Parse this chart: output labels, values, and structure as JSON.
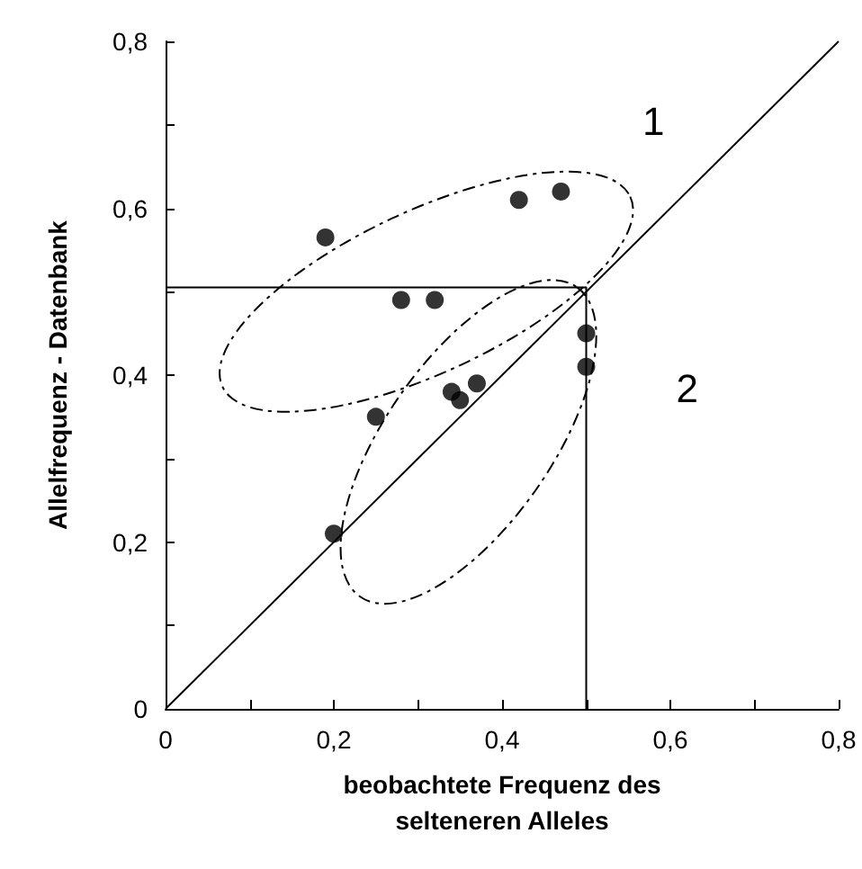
{
  "chart_data": {
    "type": "scatter",
    "xlabel": "beobachtete Frequenz des\nselteneren Alleles",
    "ylabel": "Allelfrequenz - Datenbank",
    "xlim": [
      0,
      0.8
    ],
    "ylim": [
      0,
      0.8
    ],
    "xticks": [
      {
        "value": 0,
        "label": "0"
      },
      {
        "value": 0.1,
        "label": null
      },
      {
        "value": 0.2,
        "label": "0,2"
      },
      {
        "value": 0.3,
        "label": null
      },
      {
        "value": 0.4,
        "label": "0,4"
      },
      {
        "value": 0.5,
        "label": null
      },
      {
        "value": 0.6,
        "label": "0,6"
      },
      {
        "value": 0.7,
        "label": null
      },
      {
        "value": 0.8,
        "label": "0,8"
      }
    ],
    "yticks": [
      {
        "value": 0,
        "label": "0"
      },
      {
        "value": 0.1,
        "label": null
      },
      {
        "value": 0.2,
        "label": "0,2"
      },
      {
        "value": 0.3,
        "label": null
      },
      {
        "value": 0.4,
        "label": "0,4"
      },
      {
        "value": 0.5,
        "label": null
      },
      {
        "value": 0.6,
        "label": "0,6"
      },
      {
        "value": 0.7,
        "label": null
      },
      {
        "value": 0.8,
        "label": "0,8"
      }
    ],
    "grid": false,
    "marker": "circle",
    "series": [
      {
        "color": "#000000",
        "x": [
          0.19,
          0.28,
          0.32,
          0.42,
          0.47,
          0.2,
          0.25,
          0.34,
          0.35,
          0.37,
          0.5,
          0.5
        ],
        "values": [
          0.565,
          0.49,
          0.49,
          0.61,
          0.62,
          0.21,
          0.35,
          0.38,
          0.37,
          0.39,
          0.45,
          0.41
        ]
      },
      {
        "type": "line",
        "color": "#000000",
        "x": [
          0,
          0.8
        ],
        "values": [
          0,
          0.8
        ],
        "marker": "none"
      },
      {
        "type": "line",
        "color": "#000000",
        "x": [
          0,
          0.5,
          0.5
        ],
        "values": [
          0.505,
          0.505,
          0
        ],
        "marker": "none"
      }
    ],
    "annotations": [
      "1",
      "2"
    ]
  }
}
